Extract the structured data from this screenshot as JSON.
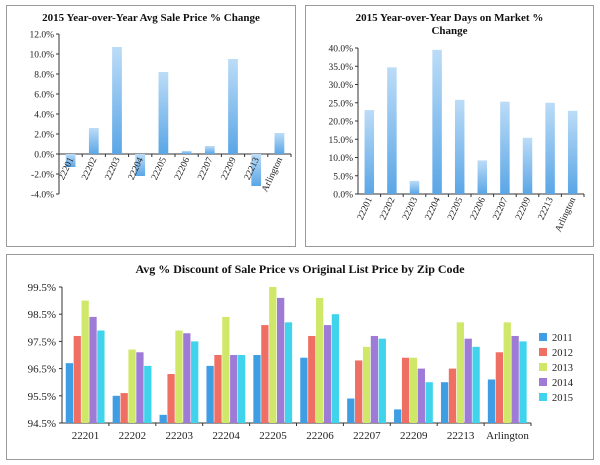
{
  "colors": {
    "bar": "#5aa6e6",
    "series": [
      "#3f9ee3",
      "#ef6f64",
      "#cfe86a",
      "#9d7bd6",
      "#3fd3ec"
    ],
    "axis": "#333333",
    "border": "#9a9a9a"
  },
  "chart_data": [
    {
      "type": "bar",
      "title": "2015 Year-over-Year Avg Sale Price % Change",
      "categories": [
        "22201",
        "22202",
        "22203",
        "22204",
        "22205",
        "22206",
        "22207",
        "22209",
        "22213",
        "Arlington"
      ],
      "values": [
        -1.3,
        2.6,
        10.7,
        -2.2,
        8.2,
        0.3,
        0.8,
        9.5,
        -3.2,
        2.1
      ],
      "ylim": [
        -4.0,
        12.0
      ],
      "yticks": [
        "12.0%",
        "10.0%",
        "8.0%",
        "6.0%",
        "4.0%",
        "2.0%",
        "0.0%",
        "-2.0%",
        "-4.0%"
      ],
      "grid": false
    },
    {
      "type": "bar",
      "title": "2015 Year-over-Year Days on Market % Change",
      "categories": [
        "22201",
        "22202",
        "22203",
        "22204",
        "22205",
        "22206",
        "22207",
        "22209",
        "22213",
        "Arlington"
      ],
      "values": [
        23.0,
        34.7,
        3.6,
        39.5,
        25.8,
        9.2,
        25.3,
        15.4,
        25.0,
        22.8
      ],
      "ylim": [
        0.0,
        40.0
      ],
      "yticks": [
        "40.0%",
        "35.0%",
        "30.0%",
        "25.0%",
        "20.0%",
        "15.0%",
        "10.0%",
        "5.0%",
        "0.0%"
      ],
      "grid": false
    },
    {
      "type": "bar",
      "title": "Avg % Discount of Sale Price vs Original List Price by Zip Code",
      "categories": [
        "22201",
        "22202",
        "22203",
        "22204",
        "22205",
        "22206",
        "22207",
        "22209",
        "22213",
        "Arlington"
      ],
      "series": [
        {
          "name": "2011",
          "values": [
            96.7,
            95.5,
            94.8,
            96.6,
            97.0,
            96.9,
            95.4,
            95.0,
            96.0,
            96.1
          ]
        },
        {
          "name": "2012",
          "values": [
            97.7,
            95.6,
            96.3,
            97.0,
            98.1,
            97.7,
            96.8,
            96.9,
            96.5,
            97.1
          ]
        },
        {
          "name": "2013",
          "values": [
            99.0,
            97.2,
            97.9,
            98.4,
            99.5,
            99.1,
            97.3,
            96.9,
            98.2,
            98.2
          ]
        },
        {
          "name": "2014",
          "values": [
            98.4,
            97.1,
            97.8,
            97.0,
            99.1,
            98.1,
            97.7,
            96.5,
            97.6,
            97.7
          ]
        },
        {
          "name": "2015",
          "values": [
            97.9,
            96.6,
            97.5,
            97.0,
            98.2,
            98.5,
            97.6,
            96.0,
            97.3,
            97.5
          ]
        }
      ],
      "ylim": [
        94.5,
        99.5
      ],
      "yticks": [
        "99.5%",
        "98.5%",
        "97.5%",
        "96.5%",
        "95.5%",
        "94.5%"
      ],
      "legend": "right",
      "grid": false
    }
  ]
}
